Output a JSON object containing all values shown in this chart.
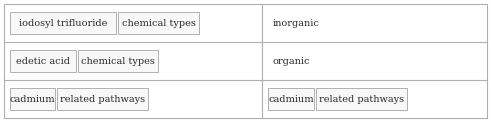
{
  "rows": [
    {
      "left_tags": [
        "iodosyl trifluoride",
        "chemical types"
      ],
      "right_content": "inorganic",
      "right_is_tags": false
    },
    {
      "left_tags": [
        "edetic acid",
        "chemical types"
      ],
      "right_content": "organic",
      "right_is_tags": false
    },
    {
      "left_tags": [
        "cadmium",
        "related pathways"
      ],
      "right_tags": [
        "cadmium",
        "related pathways"
      ],
      "right_is_tags": true
    }
  ],
  "n_rows": 3,
  "bg_color": "#ffffff",
  "border_color": "#b0b0b0",
  "tag_border_color": "#b0b0b0",
  "tag_bg_color": "#f8f8f8",
  "text_color": "#2a2a2a",
  "font_size": 7.0,
  "col_split": 0.535
}
